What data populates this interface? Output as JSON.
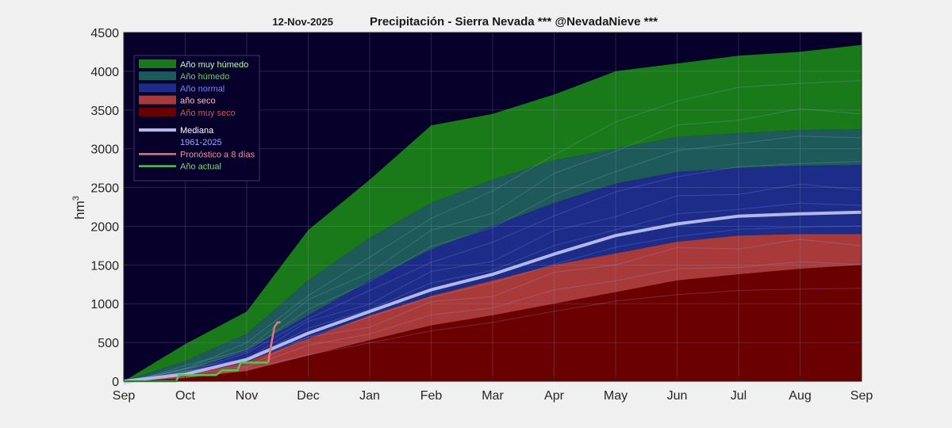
{
  "chart_data": {
    "type": "area",
    "title_date": "12-Nov-2025",
    "title": "Precipitación - Sierra Nevada  *** @NevadaNieve ***",
    "ylabel": "hm",
    "ylabel_sup": "3",
    "ylim": [
      0,
      4500
    ],
    "yticks": [
      0,
      500,
      1000,
      1500,
      2000,
      2500,
      3000,
      3500,
      4000,
      4500
    ],
    "xlabels": [
      "Sep",
      "Oct",
      "Nov",
      "Dec",
      "Jan",
      "Feb",
      "Mar",
      "Apr",
      "May",
      "Jun",
      "Jul",
      "Aug",
      "Sep"
    ],
    "grid": true,
    "legend_position": "top-left",
    "x": [
      0,
      1,
      2,
      3,
      4,
      5,
      6,
      7,
      8,
      9,
      10,
      11,
      12
    ],
    "series": [
      {
        "name": "Año muy húmedo",
        "color": "#1a7a1a",
        "text_color": "#b0ffb0",
        "values": [
          0,
          480,
          900,
          1950,
          2600,
          3300,
          3450,
          3700,
          4000,
          4100,
          4200,
          4250,
          4340
        ]
      },
      {
        "name": "Año húmedo",
        "color": "#1f5a5a",
        "text_color": "#66cc66",
        "values": [
          0,
          260,
          610,
          1300,
          1850,
          2300,
          2600,
          2850,
          3000,
          3150,
          3200,
          3240,
          3250
        ]
      },
      {
        "name": "Año normal",
        "color": "#1c2c88",
        "text_color": "#7a86ff",
        "values": [
          0,
          120,
          400,
          850,
          1300,
          1700,
          2000,
          2300,
          2550,
          2700,
          2750,
          2780,
          2790
        ]
      },
      {
        "name": "año seco",
        "color": "#a83a3a",
        "text_color": "#ffc0c0",
        "values": [
          0,
          70,
          250,
          550,
          850,
          1100,
          1300,
          1500,
          1650,
          1800,
          1880,
          1900,
          1900
        ]
      },
      {
        "name": "Año muy seco",
        "color": "#6a0000",
        "text_color": "#e05050",
        "values": [
          0,
          40,
          130,
          330,
          530,
          720,
          850,
          1000,
          1150,
          1300,
          1380,
          1450,
          1500
        ]
      },
      {
        "name": "Mediana",
        "color": "#b4b8e6",
        "text_color": "#ffffff",
        "values": [
          0,
          90,
          280,
          620,
          900,
          1180,
          1380,
          1640,
          1880,
          2030,
          2130,
          2160,
          2180
        ]
      }
    ],
    "series_1961_label": "1961-2025",
    "series_1961_color": "#a0a8ff",
    "forecast": {
      "name": "Pronóstico a 8 días",
      "color": "#e07878",
      "text_color": "#ff9090",
      "x": [
        2.35,
        2.4,
        2.45,
        2.5,
        2.55
      ],
      "values": [
        240,
        480,
        700,
        760,
        760
      ]
    },
    "actual": {
      "name": "Año actual",
      "color": "#50c850",
      "text_color": "#70e070",
      "x": [
        0,
        0.85,
        0.9,
        1.5,
        1.6,
        1.85,
        1.9,
        2.35
      ],
      "values": [
        0,
        0,
        80,
        80,
        140,
        140,
        240,
        240
      ]
    }
  }
}
